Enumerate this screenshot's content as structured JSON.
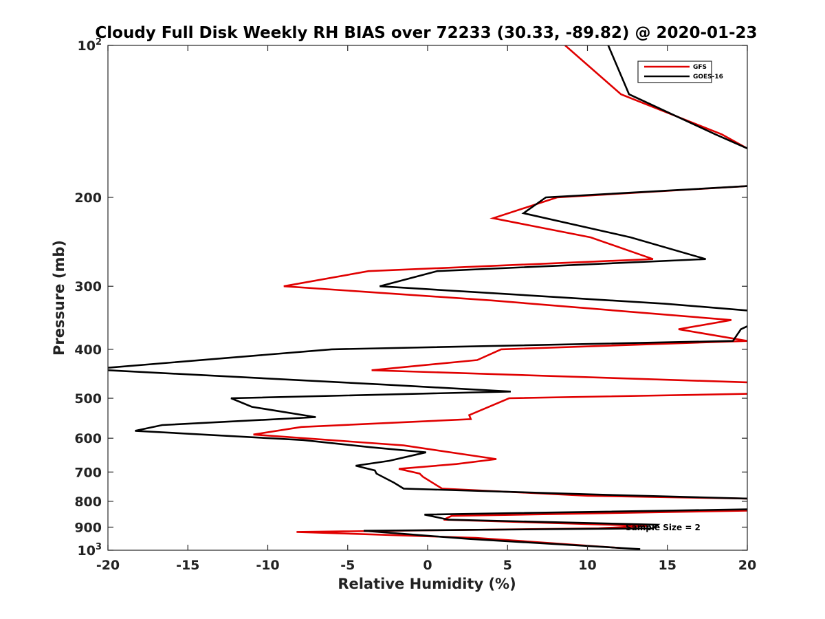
{
  "chart_data": {
    "type": "line",
    "title": "Cloudy Full Disk Weekly RH BIAS over 72233 (30.33, -89.82) @ 2020-01-23",
    "xlabel": "Relative Humidity (%)",
    "ylabel": "Pressure (mb)",
    "xlim": [
      -20,
      20
    ],
    "ylim": [
      100,
      1000
    ],
    "yscale": "log",
    "yreversed": true,
    "xticks": [
      -20,
      -15,
      -10,
      -5,
      0,
      5,
      10,
      15,
      20
    ],
    "xtick_labels": [
      "-20",
      "-15",
      "-10",
      "-5",
      "0",
      "5",
      "10",
      "15",
      "20"
    ],
    "yticks": [
      {
        "value": 100,
        "base": "10",
        "exp": "2"
      },
      {
        "value": 200,
        "label": "200"
      },
      {
        "value": 300,
        "label": "300"
      },
      {
        "value": 400,
        "label": "400"
      },
      {
        "value": 500,
        "label": "500"
      },
      {
        "value": 600,
        "label": "600"
      },
      {
        "value": 700,
        "label": "700"
      },
      {
        "value": 800,
        "label": "800"
      },
      {
        "value": 900,
        "label": "900"
      },
      {
        "value": 1000,
        "base": "10",
        "exp": "3"
      }
    ],
    "legend": {
      "location": "top-right",
      "entries": [
        "GFS",
        "GOES-16"
      ]
    },
    "annotation": "Sample Size = 2",
    "series": [
      {
        "name": "GFS",
        "color": "#e00000",
        "points": [
          [
            8.6,
            100
          ],
          [
            12.1,
            125
          ],
          [
            18.4,
            150
          ],
          [
            20,
            160
          ],
          [
            null,
            null
          ],
          [
            20,
            190
          ],
          [
            8.1,
            200
          ],
          [
            4.1,
            220
          ],
          [
            10.2,
            240
          ],
          [
            14.1,
            265
          ],
          [
            -3.7,
            280
          ],
          [
            -9.0,
            300
          ],
          [
            4.0,
            320
          ],
          [
            19.0,
            350
          ],
          [
            15.7,
            365
          ],
          [
            20,
            385
          ],
          [
            4.6,
            400
          ],
          [
            3.1,
            420
          ],
          [
            -3.5,
            440
          ],
          [
            20,
            465
          ],
          [
            null,
            null
          ],
          [
            20,
            490
          ],
          [
            5.1,
            500
          ],
          [
            2.6,
            540
          ],
          [
            2.7,
            550
          ],
          [
            -7.9,
            570
          ],
          [
            -10.9,
            590
          ],
          [
            -1.5,
            620
          ],
          [
            4.3,
            660
          ],
          [
            1.8,
            675
          ],
          [
            -1.8,
            690
          ],
          [
            -0.5,
            705
          ],
          [
            -0.3,
            715
          ],
          [
            0.9,
            755
          ],
          [
            10.0,
            780
          ],
          [
            20,
            790
          ],
          [
            null,
            null
          ],
          [
            20,
            835
          ],
          [
            1.5,
            855
          ],
          [
            1.0,
            870
          ],
          [
            13.7,
            895
          ],
          [
            10.7,
            905
          ],
          [
            -8.2,
            920
          ],
          [
            3.0,
            945
          ],
          [
            12.1,
            990
          ]
        ]
      },
      {
        "name": "GOES-16",
        "color": "#000000",
        "points": [
          [
            11.3,
            100
          ],
          [
            12.6,
            125
          ],
          [
            18.0,
            150
          ],
          [
            20,
            160
          ],
          [
            null,
            null
          ],
          [
            20,
            190
          ],
          [
            7.4,
            200
          ],
          [
            6.0,
            215
          ],
          [
            12.7,
            240
          ],
          [
            17.4,
            265
          ],
          [
            0.6,
            280
          ],
          [
            -3.0,
            300
          ],
          [
            14.9,
            325
          ],
          [
            20,
            335
          ],
          [
            null,
            null
          ],
          [
            20,
            360
          ],
          [
            19.6,
            365
          ],
          [
            19.1,
            385
          ],
          [
            -6.0,
            400
          ],
          [
            -20,
            435
          ],
          [
            null,
            null
          ],
          [
            -20,
            440
          ],
          [
            -2.6,
            470
          ],
          [
            5.2,
            485
          ],
          [
            -12.3,
            500
          ],
          [
            -11.0,
            520
          ],
          [
            -7.0,
            545
          ],
          [
            -16.6,
            565
          ],
          [
            -18.3,
            580
          ],
          [
            -7.8,
            605
          ],
          [
            -3.6,
            625
          ],
          [
            -0.1,
            640
          ],
          [
            -2.4,
            665
          ],
          [
            -4.5,
            680
          ],
          [
            -3.3,
            695
          ],
          [
            -3.2,
            705
          ],
          [
            -2.1,
            735
          ],
          [
            -1.5,
            755
          ],
          [
            10.0,
            775
          ],
          [
            20,
            790
          ],
          [
            null,
            null
          ],
          [
            20,
            830
          ],
          [
            -0.2,
            850
          ],
          [
            1.3,
            870
          ],
          [
            14.4,
            890
          ],
          [
            14.1,
            905
          ],
          [
            -4.0,
            915
          ],
          [
            2.6,
            950
          ],
          [
            13.3,
            995
          ]
        ]
      }
    ]
  }
}
